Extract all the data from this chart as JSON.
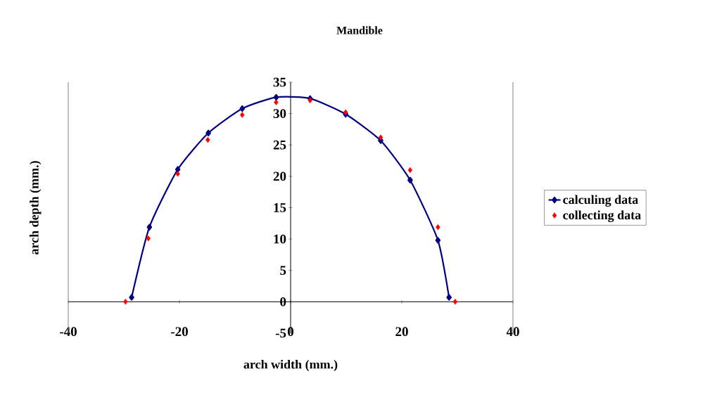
{
  "chart_data": {
    "type": "line",
    "title": "Mandible",
    "xlabel": "arch width (mm.)",
    "ylabel": "arch depth (mm.)",
    "xlim": [
      -40,
      40
    ],
    "ylim": [
      -5,
      35
    ],
    "xticks": [
      -40,
      -20,
      0,
      20,
      40
    ],
    "yticks": [
      -5,
      0,
      5,
      10,
      15,
      20,
      25,
      30,
      35
    ],
    "grid": false,
    "legend": "right",
    "marker": "diamond",
    "line_style": "solid",
    "series": [
      {
        "name": "calculing data",
        "color": "#000080",
        "x": [
          -28.6,
          -25.4,
          -20.3,
          -14.8,
          -8.7,
          -2.6,
          3.5,
          9.9,
          16.2,
          21.5,
          26.5,
          28.5
        ],
        "values": [
          0.7,
          11.9,
          21.1,
          26.9,
          30.8,
          32.6,
          32.4,
          29.9,
          25.7,
          19.4,
          9.8,
          0.7
        ]
      },
      {
        "name": "collecting data",
        "type": "scatter",
        "color": "#ff0000",
        "x": [
          -29.7,
          -25.6,
          -20.3,
          -14.9,
          -8.7,
          -2.6,
          3.5,
          9.9,
          16.2,
          21.5,
          26.5,
          29.6
        ],
        "values": [
          0,
          10.1,
          20.4,
          25.8,
          29.8,
          31.8,
          32.1,
          30.2,
          26.2,
          21.0,
          11.9,
          0
        ]
      }
    ]
  }
}
